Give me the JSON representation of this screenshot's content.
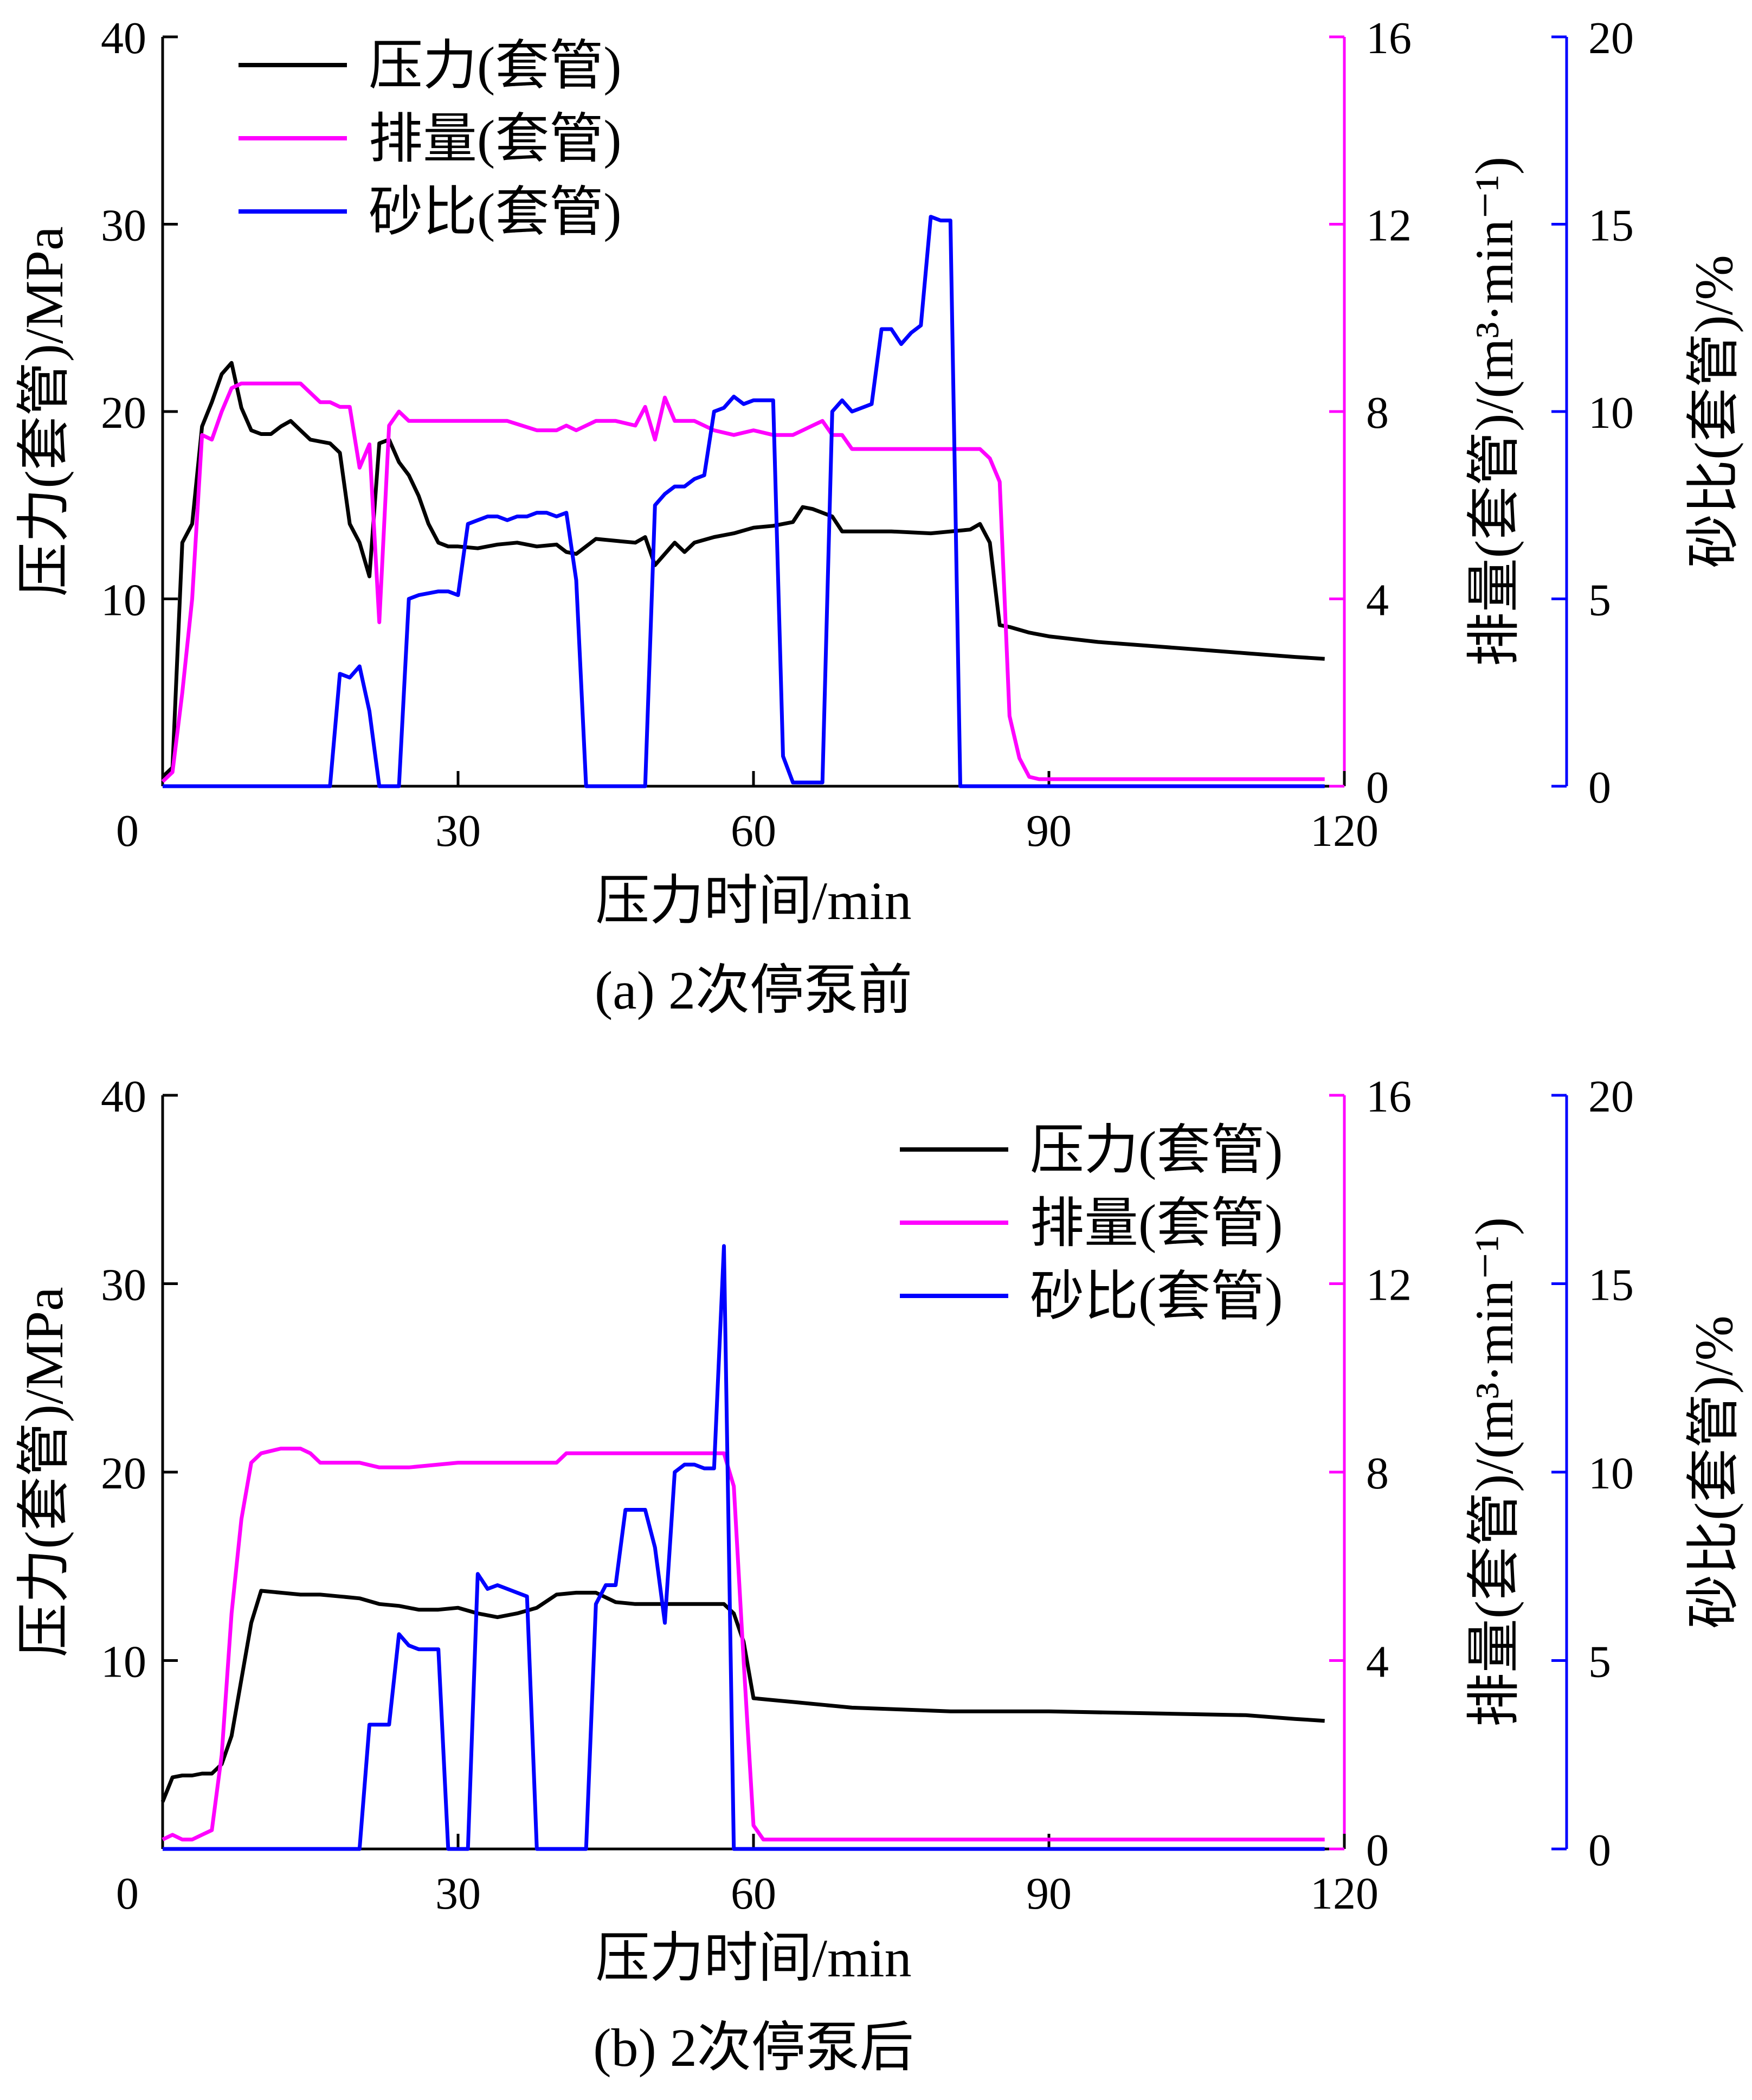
{
  "chart_data": [
    {
      "type": "line",
      "caption": "(a)  2次停泵前",
      "xlabel": "压力时间/min",
      "ylabel_left": "压力(套管)/MPa",
      "ylabel_right1": "排量(套管)/(m³·min⁻¹)",
      "ylabel_right2": "砂比(套管)/%",
      "xlim": [
        0,
        120
      ],
      "ylim_left": [
        0,
        40
      ],
      "ylim_right1": [
        0,
        16
      ],
      "ylim_right2": [
        0,
        20
      ],
      "xticks": [
        "0",
        "30",
        "60",
        "90",
        "120"
      ],
      "yticks_left": [
        "10",
        "20",
        "30",
        "40"
      ],
      "yticks_right1": [
        "0",
        "4",
        "8",
        "12",
        "16"
      ],
      "yticks_right2": [
        "0",
        "5",
        "10",
        "15",
        "20"
      ],
      "legend_position": "top-left",
      "series": [
        {
          "name": "压力(套管)",
          "axis": "left",
          "color": "#000000",
          "x": [
            0,
            1,
            2,
            3,
            4,
            5,
            6,
            7,
            8,
            9,
            10,
            11,
            12,
            13,
            14,
            15,
            16,
            17,
            18,
            19,
            20,
            21,
            22,
            23,
            24,
            25,
            26,
            27,
            28,
            29,
            30,
            32,
            34,
            36,
            38,
            40,
            41,
            42,
            44,
            46,
            48,
            49,
            50,
            52,
            53,
            54,
            56,
            58,
            60,
            62,
            64,
            65,
            66,
            67,
            68,
            69,
            70,
            74,
            78,
            82,
            83,
            84,
            85,
            86,
            88,
            90,
            95,
            100,
            105,
            110,
            115,
            118
          ],
          "y": [
            0.5,
            1,
            13,
            14,
            19.2,
            20.5,
            22,
            22.6,
            20.2,
            19,
            18.8,
            18.8,
            19.2,
            19.5,
            19,
            18.5,
            18.4,
            18.3,
            17.8,
            14,
            13,
            11.2,
            18.3,
            18.5,
            17.3,
            16.6,
            15.5,
            14,
            13,
            12.8,
            12.8,
            12.7,
            12.9,
            13,
            12.8,
            12.9,
            12.5,
            12.4,
            13.2,
            13.1,
            13,
            13.3,
            11.8,
            13,
            12.5,
            13,
            13.3,
            13.5,
            13.8,
            13.9,
            14.1,
            14.9,
            14.8,
            14.6,
            14.4,
            13.6,
            13.6,
            13.6,
            13.5,
            13.7,
            14,
            13,
            8.6,
            8.5,
            8.2,
            8,
            7.7,
            7.5,
            7.3,
            7.1,
            6.9,
            6.8
          ]
        },
        {
          "name": "排量(套管)",
          "axis": "right1",
          "color": "#ff00ff",
          "x": [
            0,
            1,
            2,
            3,
            4,
            5,
            6,
            7,
            8,
            9,
            10,
            12,
            14,
            15,
            16,
            17,
            18,
            19,
            20,
            21,
            22,
            23,
            24,
            25,
            30,
            35,
            38,
            40,
            41,
            42,
            44,
            46,
            48,
            49,
            50,
            51,
            52,
            54,
            56,
            58,
            60,
            62,
            64,
            65,
            66,
            67,
            68,
            69,
            70,
            74,
            78,
            82,
            83,
            84,
            85,
            86,
            87,
            88,
            89,
            90,
            95,
            100,
            105,
            110,
            115,
            118
          ],
          "y": [
            0.1,
            0.3,
            2,
            4,
            7.5,
            7.4,
            8,
            8.5,
            8.6,
            8.6,
            8.6,
            8.6,
            8.6,
            8.4,
            8.2,
            8.2,
            8.1,
            8.1,
            6.8,
            7.3,
            3.5,
            7.7,
            8,
            7.8,
            7.8,
            7.8,
            7.6,
            7.6,
            7.7,
            7.6,
            7.8,
            7.8,
            7.7,
            8.1,
            7.4,
            8.3,
            7.8,
            7.8,
            7.6,
            7.5,
            7.6,
            7.5,
            7.5,
            7.6,
            7.7,
            7.8,
            7.5,
            7.5,
            7.2,
            7.2,
            7.2,
            7.2,
            7.2,
            7,
            6.5,
            1.5,
            0.6,
            0.2,
            0.15,
            0.15,
            0.15,
            0.15,
            0.15,
            0.15,
            0.15,
            0.15
          ]
        },
        {
          "name": "砂比(套管)",
          "axis": "right2",
          "color": "#0000ff",
          "x": [
            0,
            16,
            17,
            18,
            19,
            20,
            21,
            22,
            23,
            24,
            25,
            26,
            28,
            29,
            30,
            31,
            32,
            33,
            34,
            35,
            36,
            37,
            38,
            39,
            40,
            41,
            42,
            43,
            44,
            45,
            46,
            47,
            48,
            49,
            50,
            51,
            52,
            53,
            54,
            55,
            56,
            57,
            58,
            59,
            60,
            61,
            62,
            63,
            64,
            65,
            66,
            67,
            68,
            69,
            70,
            71,
            72,
            73,
            74,
            75,
            76,
            77,
            78,
            79,
            80,
            81,
            82,
            118
          ],
          "y": [
            0,
            0,
            0,
            3,
            2.9,
            3.2,
            2,
            0,
            0,
            0,
            5,
            5.1,
            5.2,
            5.2,
            5.1,
            7,
            7.1,
            7.2,
            7.2,
            7.1,
            7.2,
            7.2,
            7.3,
            7.3,
            7.2,
            7.3,
            5.5,
            0,
            0,
            0,
            0,
            0,
            0,
            0,
            7.5,
            7.8,
            8,
            8,
            8.2,
            8.3,
            10,
            10.1,
            10.4,
            10.2,
            10.3,
            10.3,
            10.3,
            0.8,
            0.1,
            0.1,
            0.1,
            0.1,
            10,
            10.3,
            10,
            10.1,
            10.2,
            12.2,
            12.2,
            11.8,
            12.1,
            12.3,
            15.2,
            15.1,
            15.1,
            0,
            0,
            0
          ]
        }
      ]
    },
    {
      "type": "line",
      "caption": "(b)  2次停泵后",
      "xlabel": "压力时间/min",
      "ylabel_left": "压力(套管)/MPa",
      "ylabel_right1": "排量(套管)/(m³·min⁻¹)",
      "ylabel_right2": "砂比(套管)/%",
      "xlim": [
        0,
        120
      ],
      "ylim_left": [
        0,
        40
      ],
      "ylim_right1": [
        0,
        16
      ],
      "ylim_right2": [
        0,
        20
      ],
      "xticks": [
        "0",
        "30",
        "60",
        "90",
        "120"
      ],
      "yticks_left": [
        "10",
        "20",
        "30",
        "40"
      ],
      "yticks_right1": [
        "0",
        "4",
        "8",
        "12",
        "16"
      ],
      "yticks_right2": [
        "0",
        "5",
        "10",
        "15",
        "20"
      ],
      "legend_position": "top-right",
      "series": [
        {
          "name": "压力(套管)",
          "axis": "left",
          "color": "#000000",
          "x": [
            0,
            1,
            2,
            3,
            4,
            5,
            6,
            7,
            8,
            9,
            10,
            12,
            14,
            16,
            18,
            20,
            22,
            24,
            26,
            28,
            30,
            32,
            34,
            36,
            38,
            40,
            42,
            44,
            46,
            48,
            50,
            52,
            54,
            56,
            57,
            58,
            59,
            60,
            62,
            64,
            66,
            68,
            70,
            75,
            80,
            90,
            100,
            110,
            115,
            118
          ],
          "y": [
            2.5,
            3.8,
            3.9,
            3.9,
            4,
            4,
            4.5,
            6,
            9,
            12,
            13.7,
            13.6,
            13.5,
            13.5,
            13.4,
            13.3,
            13.0,
            12.9,
            12.7,
            12.7,
            12.8,
            12.5,
            12.3,
            12.5,
            12.8,
            13.5,
            13.6,
            13.6,
            13.1,
            13,
            13,
            13,
            13,
            13,
            13,
            12.5,
            11,
            8,
            7.9,
            7.8,
            7.7,
            7.6,
            7.5,
            7.4,
            7.3,
            7.3,
            7.2,
            7.1,
            6.9,
            6.8
          ]
        },
        {
          "name": "排量(套管)",
          "axis": "right1",
          "color": "#ff00ff",
          "x": [
            0,
            1,
            2,
            3,
            4,
            5,
            6,
            7,
            8,
            9,
            10,
            12,
            14,
            15,
            16,
            18,
            20,
            22,
            25,
            30,
            35,
            40,
            41,
            42,
            45,
            50,
            55,
            57,
            58,
            59,
            60,
            61,
            62,
            70,
            80,
            90,
            100,
            110,
            118
          ],
          "y": [
            0.2,
            0.3,
            0.2,
            0.2,
            0.3,
            0.4,
            2,
            5,
            7,
            8.2,
            8.4,
            8.5,
            8.5,
            8.4,
            8.2,
            8.2,
            8.2,
            8.1,
            8.1,
            8.2,
            8.2,
            8.2,
            8.4,
            8.4,
            8.4,
            8.4,
            8.4,
            8.4,
            7.7,
            4,
            0.5,
            0.2,
            0.2,
            0.2,
            0.2,
            0.2,
            0.2,
            0.2,
            0.2
          ]
        },
        {
          "name": "砂比(套管)",
          "axis": "right2",
          "color": "#0000ff",
          "x": [
            0,
            19,
            20,
            21,
            22,
            23,
            24,
            25,
            26,
            27,
            28,
            29,
            30,
            31,
            32,
            33,
            34,
            35,
            36,
            37,
            38,
            42,
            43,
            44,
            45,
            46,
            47,
            48,
            49,
            50,
            51,
            52,
            53,
            54,
            55,
            56,
            57,
            58,
            60,
            118
          ],
          "y": [
            0,
            0,
            0,
            3.3,
            3.3,
            3.3,
            5.7,
            5.4,
            5.3,
            5.3,
            5.3,
            0,
            0,
            0,
            7.3,
            6.9,
            7,
            6.9,
            6.8,
            6.7,
            0,
            0,
            0,
            6.5,
            7,
            7,
            9,
            9,
            9,
            8,
            6,
            10,
            10.2,
            10.2,
            10.1,
            10.1,
            16,
            0,
            0,
            0
          ]
        }
      ]
    }
  ]
}
